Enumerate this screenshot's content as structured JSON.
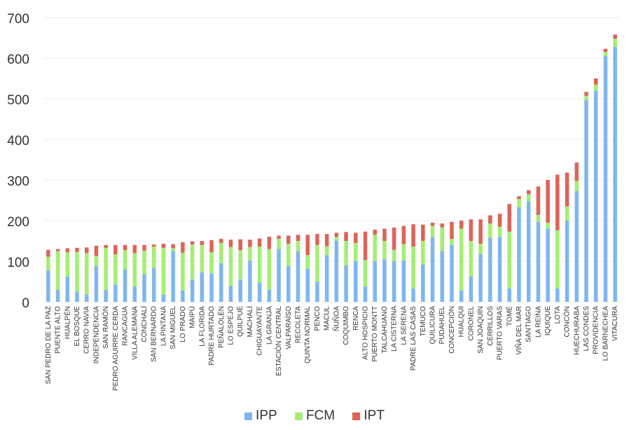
{
  "chart_data": {
    "type": "bar",
    "stacked": true,
    "title": "",
    "xlabel": "",
    "ylabel": "",
    "ylim": [
      0,
      700
    ],
    "yticks": [
      0,
      100,
      200,
      300,
      400,
      500,
      600,
      700
    ],
    "grid": true,
    "legend_position": "bottom-center",
    "categories": [
      "SAN PEDRO DE LA PAZ",
      "PUENTE ALTO",
      "HUALPÉN",
      "EL BOSQUE",
      "CERRO NAVIA",
      "INDEPENDENCIA",
      "SAN RAMÓN",
      "PEDRO AGUIRRE CERDA",
      "RANCAGUA",
      "VILLA ALEMANA",
      "CONCHALÍ",
      "SAN BERNARDO",
      "LA PINTANA",
      "SAN MIGUEL",
      "LO PRADO",
      "MAIPÚ",
      "LA FLORIDA",
      "PADRE HURTADO",
      "PEÑALOLÉN",
      "LO ESPEJO",
      "QUILPUÉ",
      "MACHALÍ",
      "CHIGUAYANTE",
      "LA GRANJA",
      "ESTACIÓN CENTRAL",
      "VALPARAÍSO",
      "RECOLETA",
      "QUINTA NORMAL",
      "PENCO",
      "MACUL",
      "ÑUÑOA",
      "COQUIMBO",
      "RENCA",
      "ALTO HOSPICIO",
      "PUERTO MONTT",
      "TALCAHUANO",
      "LA CISTERNA",
      "LA SERENA",
      "PADRE LAS CASAS",
      "TEMUCO",
      "QUILICURA",
      "PUDAHUEL",
      "CONCEPCIÓN",
      "HUALQUI",
      "CORONEL",
      "SAN JOAQUÍN",
      "CERRILLOS",
      "PUERTO VARAS",
      "TOMÉ",
      "VIÑA DEL MAR",
      "SANTIAGO",
      "LA REINA",
      "IQUIQUE",
      "LOTA",
      "CONCÓN",
      "HUECHURABA",
      "LAS CONDES",
      "PROVIDENCIA",
      "LO BARNECHEA",
      "VITACURA"
    ],
    "series": [
      {
        "name": "IPP",
        "color": "#7fb6f0",
        "values": [
          78,
          30,
          62,
          25,
          18,
          88,
          30,
          42,
          80,
          38,
          68,
          83,
          18,
          125,
          28,
          55,
          73,
          70,
          95,
          40,
          55,
          102,
          48,
          30,
          130,
          88,
          125,
          82,
          50,
          115,
          150,
          90,
          100,
          38,
          100,
          105,
          100,
          102,
          33,
          92,
          160,
          125,
          140,
          28,
          62,
          118,
          158,
          160,
          33,
          233,
          248,
          197,
          180,
          33,
          200,
          273,
          497,
          520,
          605,
          628
        ]
      },
      {
        "name": "FCM",
        "color": "#a5ee72",
        "values": [
          33,
          95,
          60,
          98,
          102,
          25,
          103,
          75,
          47,
          82,
          58,
          53,
          115,
          7,
          93,
          86,
          67,
          52,
          50,
          95,
          72,
          33,
          88,
          100,
          25,
          55,
          25,
          33,
          90,
          22,
          10,
          60,
          45,
          65,
          65,
          45,
          28,
          40,
          103,
          58,
          27,
          58,
          15,
          152,
          88,
          25,
          35,
          25,
          140,
          20,
          17,
          17,
          15,
          143,
          35,
          25,
          10,
          15,
          10,
          20
        ]
      },
      {
        "name": "IPT",
        "color": "#e06259",
        "values": [
          17,
          5,
          10,
          10,
          14,
          25,
          7,
          23,
          13,
          20,
          14,
          5,
          10,
          10,
          26,
          8,
          10,
          30,
          10,
          18,
          27,
          18,
          20,
          30,
          8,
          20,
          15,
          50,
          27,
          30,
          10,
          22,
          25,
          70,
          13,
          30,
          55,
          45,
          55,
          40,
          8,
          10,
          42,
          20,
          53,
          60,
          20,
          32,
          68,
          7,
          10,
          70,
          105,
          137,
          83,
          45,
          10,
          15,
          8,
          10
        ]
      }
    ]
  }
}
